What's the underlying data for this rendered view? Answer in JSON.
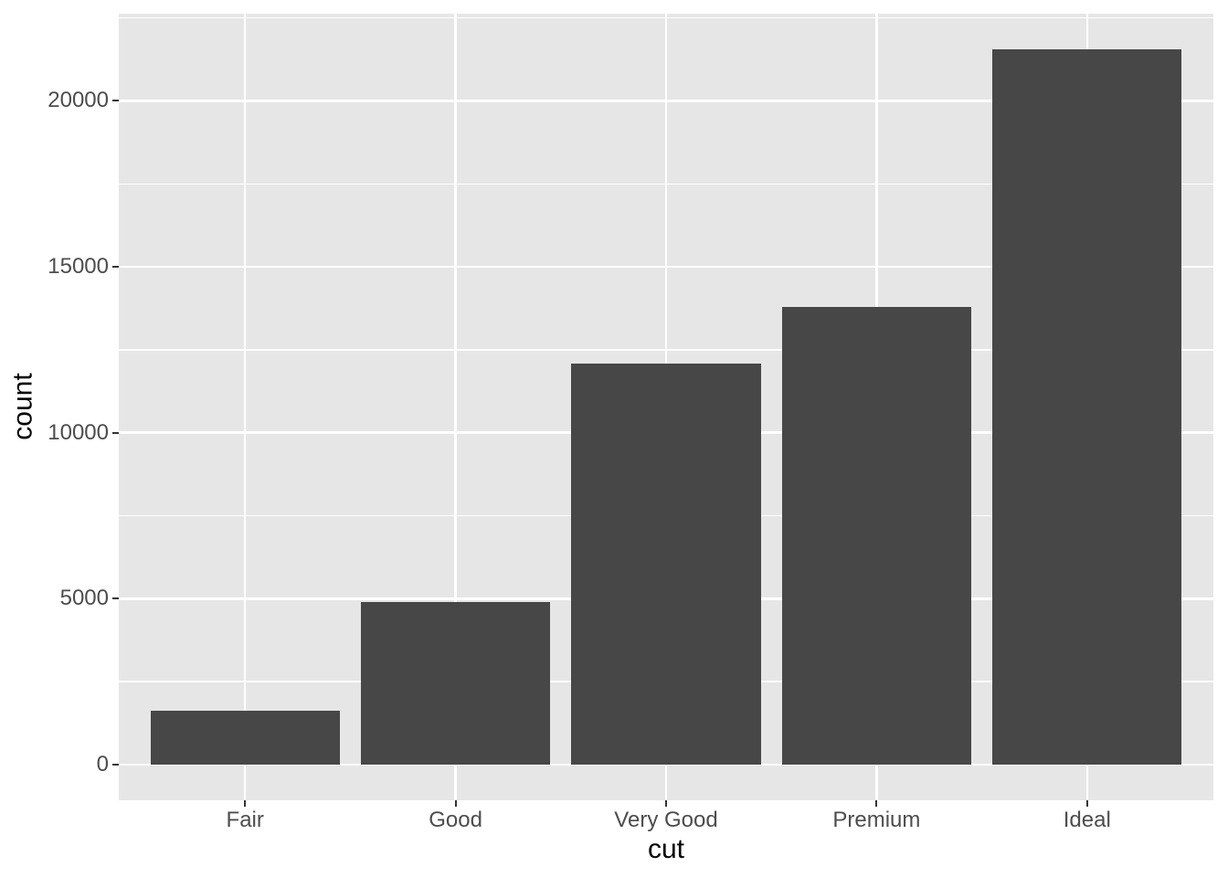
{
  "chart_data": {
    "type": "bar",
    "title": "",
    "xlabel": "cut",
    "ylabel": "count",
    "categories": [
      "Fair",
      "Good",
      "Very Good",
      "Premium",
      "Ideal"
    ],
    "values": [
      1610,
      4906,
      12082,
      13791,
      21551
    ],
    "y_major_ticks": [
      0,
      5000,
      10000,
      15000,
      20000
    ],
    "y_minor_gridlines": [
      2500,
      7500,
      12500,
      17500,
      22500
    ],
    "ylim": [
      -1078,
      22629
    ],
    "grid": "on",
    "legend": "none",
    "colors": {
      "bar_fill": "#474747",
      "panel_background": "#E6E6E6",
      "gridline": "#FFFFFF",
      "axis_text": "#4D4D4D",
      "axis_title": "#000000",
      "tick_mark": "#333333",
      "figure_background": "#FFFFFF"
    }
  }
}
